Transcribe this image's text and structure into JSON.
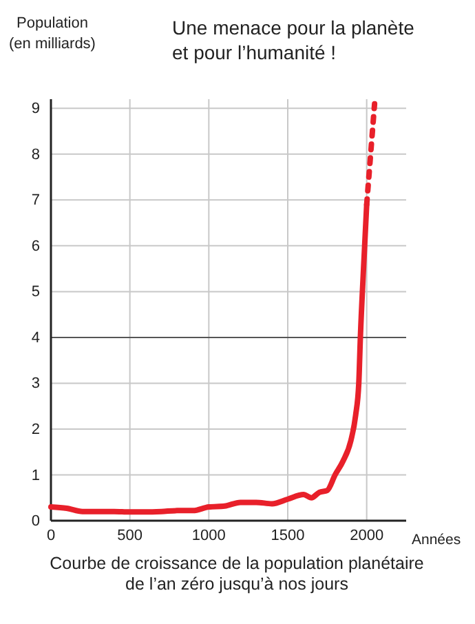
{
  "chart_data": {
    "type": "line",
    "title": "Une menace pour la planète\net pour l’humanité !",
    "ylabel": "Population\n(en milliards)",
    "xlabel": "Années",
    "annotations": [
      "Courbe de croissance de la population planétaire\nde l’an zéro jusqu’à nos jours"
    ],
    "xlim": [
      0,
      2250
    ],
    "xticks": [
      0,
      500,
      1000,
      1500,
      2000
    ],
    "ylim": [
      0,
      9.2
    ],
    "yticks": [
      0,
      1,
      2,
      3,
      4,
      5,
      6,
      7,
      8,
      9
    ],
    "grid": true,
    "ref_lines": [
      {
        "axis": "y",
        "value": 4,
        "color": "#555555"
      }
    ],
    "series": [
      {
        "color": "#e8202a",
        "line_style": "solid",
        "x": [
          0,
          100,
          200,
          300,
          400,
          500,
          600,
          700,
          800,
          900,
          1000,
          1100,
          1200,
          1300,
          1400,
          1500,
          1600,
          1650,
          1700,
          1750,
          1800,
          1850,
          1900,
          1930,
          1950,
          1960,
          1980,
          2000
        ],
        "values": [
          0.3,
          0.27,
          0.2,
          0.2,
          0.2,
          0.19,
          0.19,
          0.2,
          0.22,
          0.22,
          0.3,
          0.32,
          0.4,
          0.4,
          0.37,
          0.47,
          0.57,
          0.5,
          0.62,
          0.66,
          1.0,
          1.3,
          1.75,
          2.3,
          3.0,
          4.0,
          5.5,
          6.9
        ]
      },
      {
        "color": "#e8202a",
        "line_style": "dotted",
        "x": [
          2000,
          2050
        ],
        "values": [
          6.9,
          9.1
        ]
      }
    ]
  }
}
